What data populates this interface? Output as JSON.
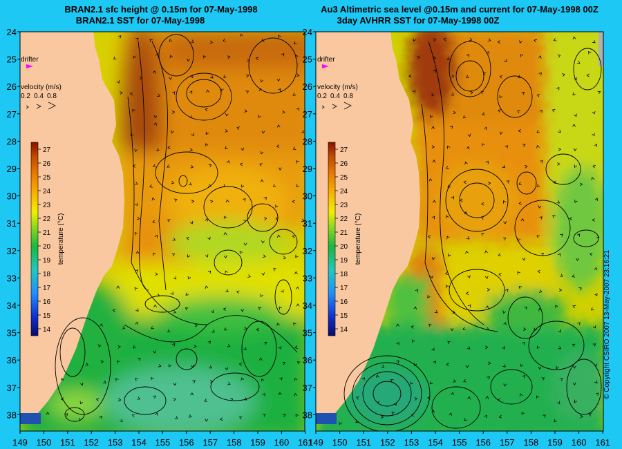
{
  "left_panel": {
    "title_line1": "BRAN2.1 sfc height @ 0.15m for 07-May-1998",
    "title_line2": "BRAN2.1 SST for 07-May-1998"
  },
  "right_panel": {
    "title_line1": "Au3 Altimetric sea level  @0.15m and current for 07-May-1998 00Z",
    "title_line2": "3day AVHRR SST for 07-May-1998 00Z"
  },
  "axes": {
    "lon_range": [
      149,
      161
    ],
    "lat_range": [
      24,
      38.4
    ],
    "lon_ticks": [
      "149",
      "150",
      "151",
      "152",
      "153",
      "154",
      "155",
      "156",
      "157",
      "158",
      "159",
      "160",
      "161"
    ],
    "lat_ticks": [
      "24",
      "25",
      "26",
      "27",
      "28",
      "29",
      "30",
      "31",
      "32",
      "33",
      "34",
      "35",
      "36",
      "37",
      "38"
    ],
    "lat_direction": "south"
  },
  "legend": {
    "drifter_label": "drifter",
    "velocity_title": "velocity (m/s)",
    "velocity_values": [
      "0.2",
      "0.4",
      "0.8"
    ],
    "colorbar_title": "temperature (°C)",
    "colorbar_ticks": [
      "27",
      "26",
      "25",
      "24",
      "23",
      "22",
      "21",
      "20",
      "19",
      "18",
      "17",
      "16",
      "15",
      "14"
    ],
    "colorbar_range": [
      13.5,
      27.5
    ]
  },
  "copyright": "© Copyright CSIRO 2007   13-May-2007 23:16:21",
  "colors": {
    "background": "#1ec8f5",
    "land": "#fac8a0",
    "drifter": "#ff00ff"
  }
}
